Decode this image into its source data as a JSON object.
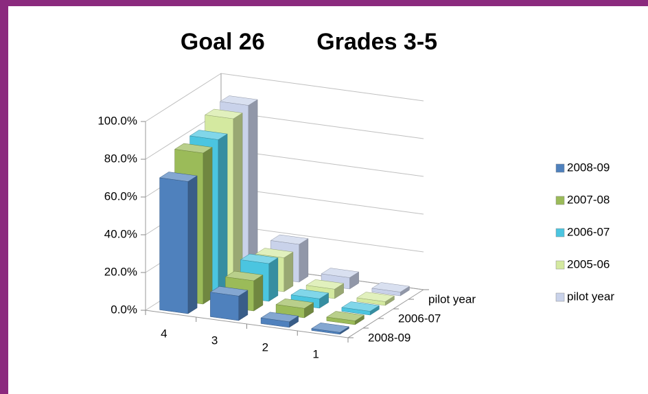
{
  "chart_data": {
    "type": "bar3d",
    "title": "Goal 26        Grades 3-5",
    "categories": [
      "4",
      "3",
      "2",
      "1"
    ],
    "series": [
      {
        "name": "2008-09",
        "color": "#4f81bd",
        "values": [
          70,
          13,
          3,
          1
        ]
      },
      {
        "name": "2007-08",
        "color": "#9bbb59",
        "values": [
          80,
          16,
          5,
          2
        ]
      },
      {
        "name": "2006-07",
        "color": "#4bc5e0",
        "values": [
          82,
          20,
          5,
          2
        ]
      },
      {
        "name": "2005-06",
        "color": "#d4e9a0",
        "values": [
          88,
          18,
          5,
          2
        ]
      },
      {
        "name": "pilot year",
        "color": "#c9d2ea",
        "values": [
          90,
          20,
          6,
          2
        ]
      }
    ],
    "depth_axis_series": [
      0,
      2,
      4
    ],
    "ylim": [
      0,
      100
    ],
    "yticks": [
      {
        "value": 0,
        "label": "0.0%"
      },
      {
        "value": 20,
        "label": "20.0%"
      },
      {
        "value": 40,
        "label": "40.0%"
      },
      {
        "value": 60,
        "label": "60.0%"
      },
      {
        "value": 80,
        "label": "80.0%"
      },
      {
        "value": 100,
        "label": "100.0%"
      }
    ],
    "grid": true,
    "legend": "right"
  }
}
